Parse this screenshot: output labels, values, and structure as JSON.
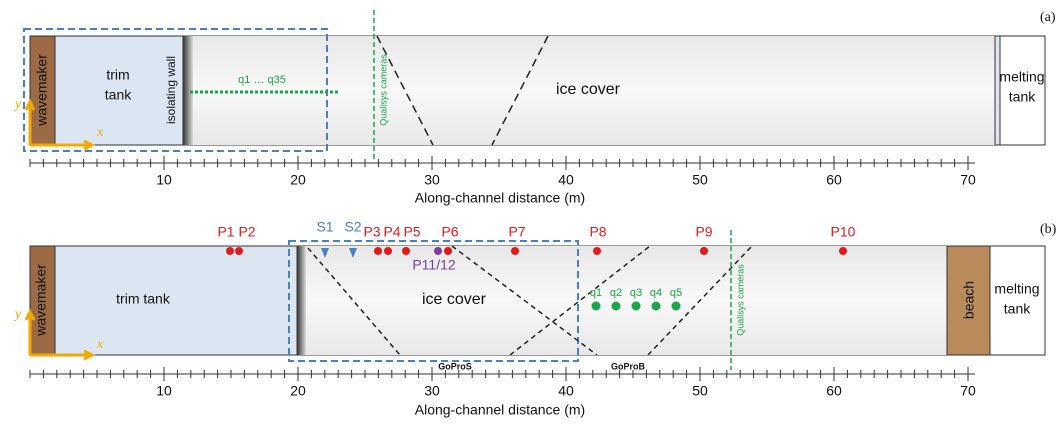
{
  "panel_a": {
    "label": "(a)",
    "wavemaker": "wavemaker",
    "trim_tank": [
      "trim",
      "tank"
    ],
    "isolating_wall": "isolating wall",
    "probes": "q1 … q35",
    "cameras": "Qualisys cameras",
    "ice_cover": "ice cover",
    "melting_tank": [
      "melting",
      "tank"
    ],
    "axis_x": "x",
    "axis_y": "y",
    "axis": {
      "title": "Along-channel distance (m)",
      "ticks": [
        10,
        20,
        30,
        40,
        50,
        60,
        70
      ]
    }
  },
  "panel_b": {
    "label": "(b)",
    "wavemaker": "wavemaker",
    "trim_tank": "trim tank",
    "ice_cover": "ice cover",
    "beach": "beach",
    "melting_tank": [
      "melting",
      "tank"
    ],
    "axis_x": "x",
    "axis_y": "y",
    "sensors": [
      "S1",
      "S2"
    ],
    "pressure": [
      "P1",
      "P2",
      "P3",
      "P4",
      "P5",
      "P6",
      "P7",
      "P8",
      "P9",
      "P10"
    ],
    "pressure_pair": "P11/12",
    "probes": [
      "q1",
      "q2",
      "q3",
      "q4",
      "q5"
    ],
    "cameras": "Qualisys cameras",
    "gopro": [
      "GoProS",
      "GoProB"
    ],
    "axis": {
      "title": "Along-channel distance (m)",
      "ticks": [
        10,
        20,
        30,
        40,
        50,
        60,
        70
      ]
    }
  }
}
